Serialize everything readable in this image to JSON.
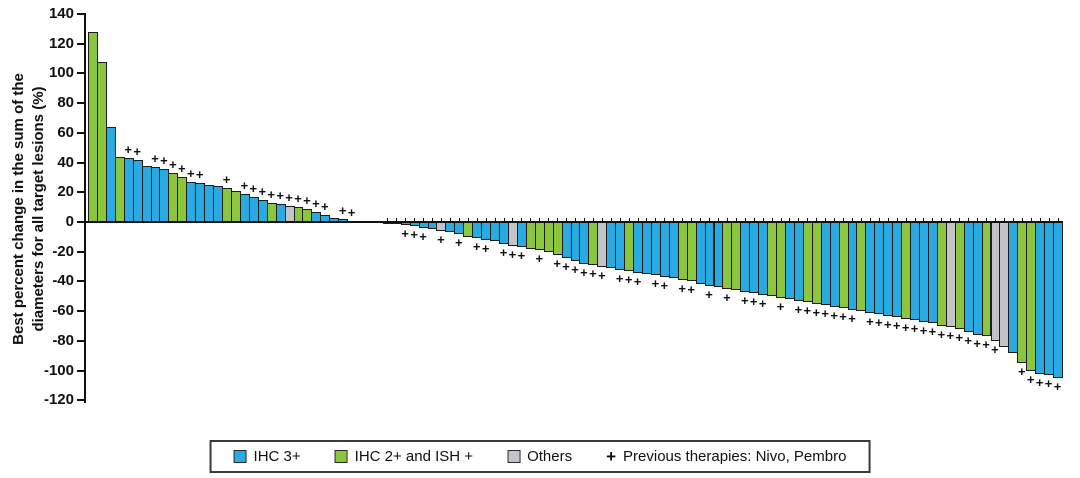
{
  "y_axis": {
    "label_line1": "Best percent change in the sum of the",
    "label_line2": "diameters for all target lesions (%)",
    "ticks": [
      140,
      120,
      100,
      80,
      60,
      40,
      20,
      0,
      -20,
      -40,
      -60,
      -80,
      -100,
      -120
    ]
  },
  "legend": {
    "items": [
      {
        "type": "swatch",
        "color": "#29abe2",
        "label": "IHC 3+",
        "name": "legend-item-ihc3"
      },
      {
        "type": "swatch",
        "color": "#8cc63f",
        "label": "IHC 2+ and ISH +",
        "name": "legend-item-ihc2-ish"
      },
      {
        "type": "swatch",
        "color": "#c4c3c9",
        "label": "Others",
        "name": "legend-item-others"
      },
      {
        "type": "plus",
        "symbol": "+",
        "label": "Previous therapies: Nivo, Pembro",
        "name": "legend-item-previous-therapies"
      }
    ]
  },
  "chart_data": {
    "type": "bar",
    "title": "",
    "xlabel": "",
    "ylabel": "Best percent change in the sum of the diameters for all target lesions (%)",
    "ylim": [
      -120,
      140
    ],
    "ytick_step": 20,
    "grid": false,
    "legend_position": "bottom-center",
    "marker_meaning": "Previous therapies: Nivo, Pembro",
    "color_key": {
      "b": "#29abe2",
      "g": "#8cc63f",
      "y": "#c4c3c9"
    },
    "category_key": {
      "b": "IHC 3+",
      "g": "IHC 2+ and ISH +",
      "y": "Others"
    },
    "bars": [
      {
        "v": 128,
        "c": "g",
        "p": false
      },
      {
        "v": 108,
        "c": "g",
        "p": false
      },
      {
        "v": 64,
        "c": "b",
        "p": false
      },
      {
        "v": 44,
        "c": "g",
        "p": false
      },
      {
        "v": 43,
        "c": "b",
        "p": true
      },
      {
        "v": 42,
        "c": "b",
        "p": true
      },
      {
        "v": 38,
        "c": "b",
        "p": false
      },
      {
        "v": 37,
        "c": "b",
        "p": true
      },
      {
        "v": 36,
        "c": "b",
        "p": true
      },
      {
        "v": 33,
        "c": "g",
        "p": true
      },
      {
        "v": 30,
        "c": "g",
        "p": true
      },
      {
        "v": 27,
        "c": "b",
        "p": true
      },
      {
        "v": 26,
        "c": "b",
        "p": true
      },
      {
        "v": 25,
        "c": "b",
        "p": false
      },
      {
        "v": 24,
        "c": "b",
        "p": false
      },
      {
        "v": 23,
        "c": "g",
        "p": true
      },
      {
        "v": 21,
        "c": "g",
        "p": false
      },
      {
        "v": 19,
        "c": "b",
        "p": true
      },
      {
        "v": 17,
        "c": "b",
        "p": true
      },
      {
        "v": 15,
        "c": "b",
        "p": true
      },
      {
        "v": 13,
        "c": "g",
        "p": true
      },
      {
        "v": 12,
        "c": "b",
        "p": true
      },
      {
        "v": 11,
        "c": "y",
        "p": true
      },
      {
        "v": 10,
        "c": "g",
        "p": true
      },
      {
        "v": 9,
        "c": "g",
        "p": true
      },
      {
        "v": 7,
        "c": "b",
        "p": true
      },
      {
        "v": 5,
        "c": "b",
        "p": true
      },
      {
        "v": 3,
        "c": "b",
        "p": false
      },
      {
        "v": 2,
        "c": "b",
        "p": true
      },
      {
        "v": 1,
        "c": "g",
        "p": true
      },
      {
        "v": 1,
        "c": "b",
        "p": false
      },
      {
        "v": 0.5,
        "c": "b",
        "p": false
      },
      {
        "v": 0,
        "c": "b",
        "p": false
      },
      {
        "v": -0.5,
        "c": "b",
        "p": false
      },
      {
        "v": -1,
        "c": "b",
        "p": false
      },
      {
        "v": -2,
        "c": "b",
        "p": true
      },
      {
        "v": -3,
        "c": "b",
        "p": true
      },
      {
        "v": -4,
        "c": "b",
        "p": true
      },
      {
        "v": -5,
        "c": "b",
        "p": false
      },
      {
        "v": -6,
        "c": "y",
        "p": true
      },
      {
        "v": -7,
        "c": "b",
        "p": false
      },
      {
        "v": -8,
        "c": "b",
        "p": true
      },
      {
        "v": -10,
        "c": "g",
        "p": false
      },
      {
        "v": -11,
        "c": "b",
        "p": true
      },
      {
        "v": -12,
        "c": "b",
        "p": true
      },
      {
        "v": -13,
        "c": "b",
        "p": false
      },
      {
        "v": -15,
        "c": "b",
        "p": true
      },
      {
        "v": -16,
        "c": "y",
        "p": true
      },
      {
        "v": -17,
        "c": "b",
        "p": true
      },
      {
        "v": -18,
        "c": "g",
        "p": false
      },
      {
        "v": -19,
        "c": "g",
        "p": true
      },
      {
        "v": -20,
        "c": "g",
        "p": false
      },
      {
        "v": -22,
        "c": "g",
        "p": true
      },
      {
        "v": -24,
        "c": "b",
        "p": true
      },
      {
        "v": -26,
        "c": "b",
        "p": true
      },
      {
        "v": -28,
        "c": "b",
        "p": true
      },
      {
        "v": -29,
        "c": "g",
        "p": true
      },
      {
        "v": -30,
        "c": "y",
        "p": true
      },
      {
        "v": -31,
        "c": "b",
        "p": false
      },
      {
        "v": -32,
        "c": "b",
        "p": true
      },
      {
        "v": -33,
        "c": "g",
        "p": true
      },
      {
        "v": -34,
        "c": "b",
        "p": true
      },
      {
        "v": -35,
        "c": "b",
        "p": false
      },
      {
        "v": -36,
        "c": "b",
        "p": true
      },
      {
        "v": -37,
        "c": "b",
        "p": true
      },
      {
        "v": -38,
        "c": "b",
        "p": false
      },
      {
        "v": -39,
        "c": "g",
        "p": true
      },
      {
        "v": -40,
        "c": "g",
        "p": true
      },
      {
        "v": -42,
        "c": "b",
        "p": false
      },
      {
        "v": -43,
        "c": "b",
        "p": true
      },
      {
        "v": -44,
        "c": "b",
        "p": false
      },
      {
        "v": -45,
        "c": "g",
        "p": true
      },
      {
        "v": -46,
        "c": "g",
        "p": false
      },
      {
        "v": -47,
        "c": "b",
        "p": true
      },
      {
        "v": -48,
        "c": "b",
        "p": true
      },
      {
        "v": -49,
        "c": "b",
        "p": true
      },
      {
        "v": -50,
        "c": "g",
        "p": false
      },
      {
        "v": -51,
        "c": "g",
        "p": true
      },
      {
        "v": -52,
        "c": "b",
        "p": false
      },
      {
        "v": -53,
        "c": "b",
        "p": true
      },
      {
        "v": -54,
        "c": "g",
        "p": true
      },
      {
        "v": -55,
        "c": "g",
        "p": true
      },
      {
        "v": -56,
        "c": "b",
        "p": true
      },
      {
        "v": -57,
        "c": "b",
        "p": true
      },
      {
        "v": -58,
        "c": "g",
        "p": true
      },
      {
        "v": -59,
        "c": "b",
        "p": true
      },
      {
        "v": -60,
        "c": "g",
        "p": false
      },
      {
        "v": -61,
        "c": "b",
        "p": true
      },
      {
        "v": -62,
        "c": "b",
        "p": true
      },
      {
        "v": -63,
        "c": "b",
        "p": true
      },
      {
        "v": -64,
        "c": "b",
        "p": true
      },
      {
        "v": -65,
        "c": "g",
        "p": true
      },
      {
        "v": -66,
        "c": "b",
        "p": true
      },
      {
        "v": -67,
        "c": "b",
        "p": true
      },
      {
        "v": -68,
        "c": "b",
        "p": true
      },
      {
        "v": -70,
        "c": "g",
        "p": true
      },
      {
        "v": -71,
        "c": "y",
        "p": true
      },
      {
        "v": -72,
        "c": "g",
        "p": true
      },
      {
        "v": -74,
        "c": "b",
        "p": true
      },
      {
        "v": -76,
        "c": "b",
        "p": true
      },
      {
        "v": -77,
        "c": "g",
        "p": true
      },
      {
        "v": -80,
        "c": "y",
        "p": true
      },
      {
        "v": -84,
        "c": "y",
        "p": false
      },
      {
        "v": -88,
        "c": "b",
        "p": false
      },
      {
        "v": -95,
        "c": "g",
        "p": true
      },
      {
        "v": -100,
        "c": "g",
        "p": true
      },
      {
        "v": -102,
        "c": "b",
        "p": true
      },
      {
        "v": -103,
        "c": "b",
        "p": true
      },
      {
        "v": -105,
        "c": "b",
        "p": true
      }
    ]
  }
}
